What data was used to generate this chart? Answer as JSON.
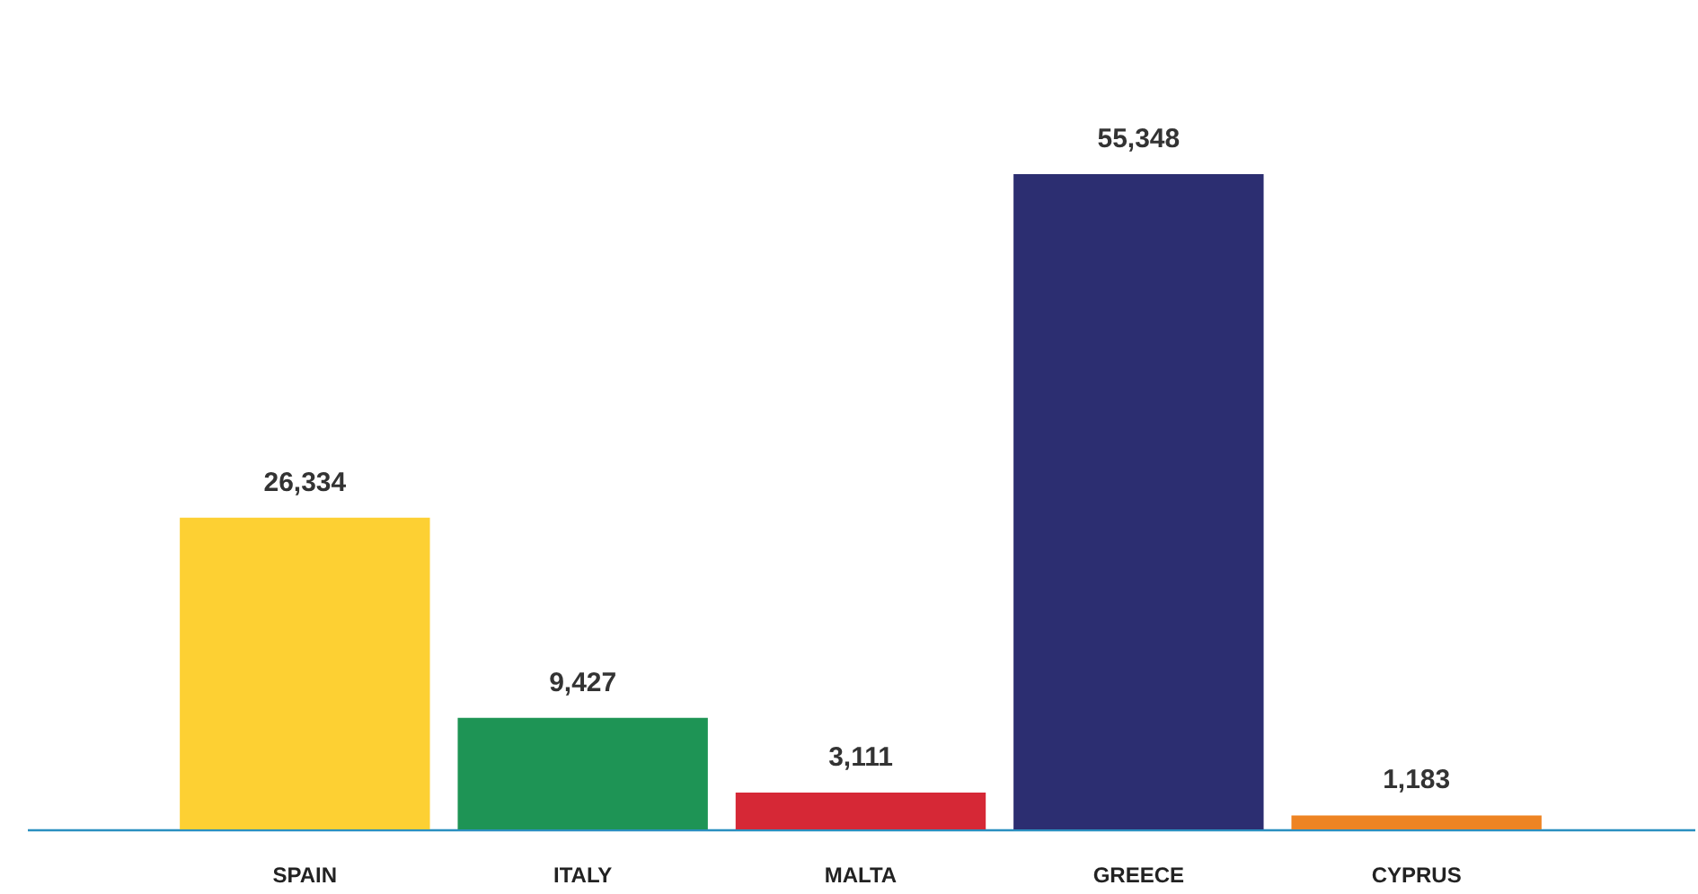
{
  "chart_data": {
    "type": "bar",
    "categories": [
      "SPAIN",
      "ITALY",
      "MALTA",
      "GREECE",
      "CYPRUS"
    ],
    "values": [
      26334,
      9427,
      3111,
      55348,
      1183
    ],
    "value_labels": [
      "26,334",
      "9,427",
      "3,111",
      "55,348",
      "1,183"
    ],
    "colors": [
      "#fdd033",
      "#1e9455",
      "#d62836",
      "#2c2e71",
      "#ee8423"
    ]
  }
}
